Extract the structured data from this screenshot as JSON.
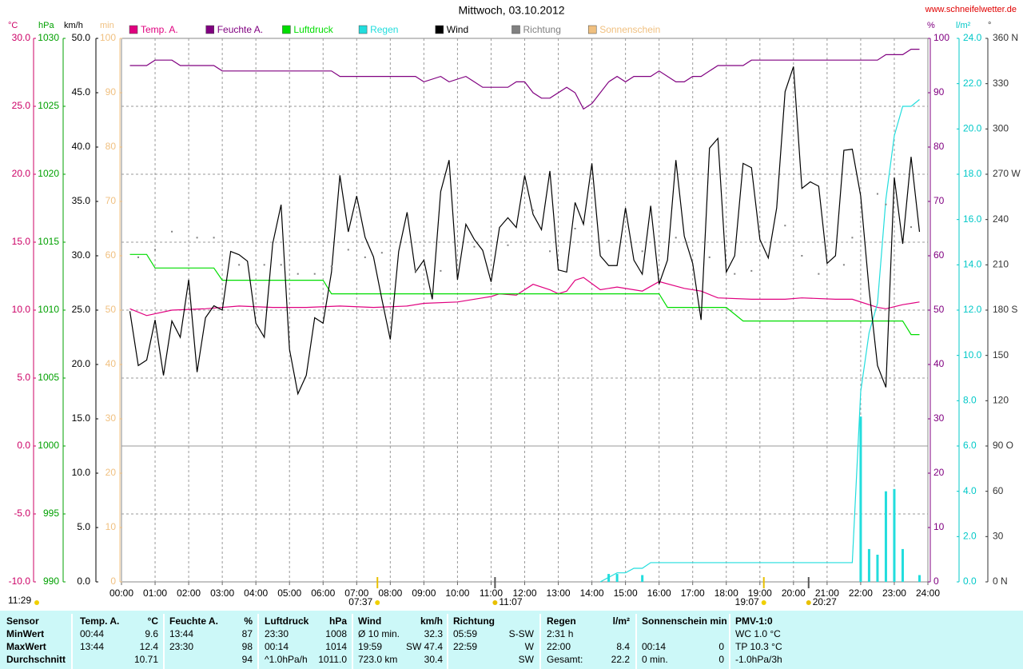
{
  "chart_data": {
    "type": "line",
    "title": "Mittwoch, 03.10.2012",
    "source": "www.schneifelwetter.de",
    "xlim": [
      0,
      24
    ],
    "xticks": [
      {
        "value": 0,
        "label": "00:00"
      },
      {
        "value": 1,
        "label": "01:00"
      },
      {
        "value": 2,
        "label": "02:00"
      },
      {
        "value": 3,
        "label": "03:00"
      },
      {
        "value": 4,
        "label": "04:00"
      },
      {
        "value": 5,
        "label": "05:00"
      },
      {
        "value": 6,
        "label": "06:00"
      },
      {
        "value": 7,
        "label": "07:00"
      },
      {
        "value": 8,
        "label": "08:00"
      },
      {
        "value": 9,
        "label": "09:00"
      },
      {
        "value": 10,
        "label": "10:00"
      },
      {
        "value": 11,
        "label": "11:00"
      },
      {
        "value": 12,
        "label": "12:00"
      },
      {
        "value": 13,
        "label": "13:00"
      },
      {
        "value": 14,
        "label": "14:00"
      },
      {
        "value": 15,
        "label": "15:00"
      },
      {
        "value": 16,
        "label": "16:00"
      },
      {
        "value": 17,
        "label": "17:00"
      },
      {
        "value": 18,
        "label": "18:00"
      },
      {
        "value": 19,
        "label": "19:00"
      },
      {
        "value": 20,
        "label": "20:00"
      },
      {
        "value": 21,
        "label": "21:00"
      },
      {
        "value": 22,
        "label": "22:00"
      },
      {
        "value": 23,
        "label": "23:00"
      },
      {
        "value": 24,
        "label": "24:00"
      }
    ],
    "grid": true,
    "zero_line": true,
    "axes": {
      "temp": {
        "unit": "°C",
        "color": "#cc0066",
        "lim": [
          -10,
          30
        ],
        "ticks": [
          {
            "value": -10,
            "label": "-10.0"
          },
          {
            "value": -5,
            "label": "-5.0"
          },
          {
            "value": 0,
            "label": "0.0"
          },
          {
            "value": 5,
            "label": "5.0"
          },
          {
            "value": 10,
            "label": "10.0"
          },
          {
            "value": 15,
            "label": "15.0"
          },
          {
            "value": 20,
            "label": "20.0"
          },
          {
            "value": 25,
            "label": "25.0"
          },
          {
            "value": 30,
            "label": "30.0"
          }
        ]
      },
      "pressure": {
        "unit": "hPa",
        "color": "#00a000",
        "lim": [
          990,
          1030
        ],
        "ticks": [
          990,
          995,
          1000,
          1005,
          1010,
          1015,
          1020,
          1025,
          1030
        ]
      },
      "wind": {
        "unit": "km/h",
        "color": "#000000",
        "lim": [
          0,
          50
        ],
        "ticks": [
          {
            "value": 0,
            "label": "0.0"
          },
          {
            "value": 5,
            "label": "5.0"
          },
          {
            "value": 10,
            "label": "10.0"
          },
          {
            "value": 15,
            "label": "15.0"
          },
          {
            "value": 20,
            "label": "20.0"
          },
          {
            "value": 25,
            "label": "25.0"
          },
          {
            "value": 30,
            "label": "30.0"
          },
          {
            "value": 35,
            "label": "35.0"
          },
          {
            "value": 40,
            "label": "40.0"
          },
          {
            "value": 45,
            "label": "45.0"
          },
          {
            "value": 50,
            "label": "50.0"
          }
        ]
      },
      "sun": {
        "unit": "min",
        "color": "#f0c080",
        "lim": [
          0,
          100
        ],
        "ticks": [
          0,
          10,
          20,
          30,
          40,
          50,
          60,
          70,
          80,
          90,
          100
        ]
      },
      "humidity": {
        "unit": "%",
        "color": "#800080",
        "lim": [
          0,
          100
        ],
        "ticks": [
          0,
          10,
          20,
          30,
          40,
          50,
          60,
          70,
          80,
          90,
          100
        ]
      },
      "rain": {
        "unit": "l/m²",
        "color": "#00c8c8",
        "lim": [
          0,
          24
        ],
        "ticks": [
          {
            "value": 0,
            "label": "0.0"
          },
          {
            "value": 2,
            "label": "2.0"
          },
          {
            "value": 4,
            "label": "4.0"
          },
          {
            "value": 6,
            "label": "6.0"
          },
          {
            "value": 8,
            "label": "8.0"
          },
          {
            "value": 10,
            "label": "10.0"
          },
          {
            "value": 12,
            "label": "12.0"
          },
          {
            "value": 14,
            "label": "14.0"
          },
          {
            "value": 16,
            "label": "16.0"
          },
          {
            "value": 18,
            "label": "18.0"
          },
          {
            "value": 20,
            "label": "20.0"
          },
          {
            "value": 22,
            "label": "22.0"
          },
          {
            "value": 24,
            "label": "24.0"
          }
        ]
      },
      "direction": {
        "unit": "°",
        "color": "#333333",
        "lim": [
          0,
          360
        ],
        "ticks": [
          {
            "value": 0,
            "label": "0 N"
          },
          30,
          60,
          {
            "value": 90,
            "label": "90 O"
          },
          120,
          150,
          {
            "value": 180,
            "label": "180 S"
          },
          210,
          240,
          {
            "value": 270,
            "label": "270 W"
          },
          300,
          330,
          {
            "value": 360,
            "label": "360 N"
          }
        ]
      }
    },
    "series": [
      {
        "name": "Temp. A.",
        "color": "#e0007f",
        "axis": "temp",
        "type": "line",
        "x": [
          0.25,
          0.75,
          1.5,
          2.5,
          3.5,
          4.5,
          5.5,
          6.5,
          7.5,
          8.5,
          9,
          10,
          10.75,
          11,
          11.25,
          11.75,
          12.25,
          12.75,
          13,
          13.25,
          13.5,
          13.75,
          14.25,
          14.75,
          15.5,
          16,
          16.75,
          17.25,
          17.75,
          18.75,
          19.75,
          20.25,
          21.25,
          21.75,
          22.5,
          22.75,
          23.25,
          23.75
        ],
        "values": [
          10.1,
          9.6,
          10,
          10.1,
          10.3,
          10.2,
          10.2,
          10.3,
          10.2,
          10.3,
          10.5,
          10.6,
          10.9,
          11,
          11.2,
          11.1,
          11.9,
          11.5,
          11.2,
          11.4,
          12.2,
          12.4,
          11.5,
          11.7,
          11.4,
          12.1,
          11.6,
          11.4,
          10.9,
          10.8,
          10.8,
          10.9,
          10.8,
          10.8,
          10.2,
          10.1,
          10.4,
          10.6
        ]
      },
      {
        "name": "Feuchte A.",
        "color": "#800080",
        "axis": "humidity",
        "type": "line",
        "x": [
          0.25,
          0.75,
          1,
          1.5,
          1.75,
          2.75,
          3,
          6.25,
          6.5,
          8.75,
          9,
          9.5,
          9.75,
          10.25,
          10.5,
          10.75,
          11.5,
          11.75,
          12,
          12.25,
          12.5,
          12.75,
          13.25,
          13.5,
          13.75,
          14,
          14.5,
          14.75,
          15,
          15.25,
          15.75,
          16,
          16.5,
          16.75,
          17,
          17.25,
          17.75,
          18.5,
          18.75,
          22.5,
          22.75,
          23.25,
          23.5,
          23.75
        ],
        "values": [
          95,
          95,
          96,
          96,
          95,
          95,
          94,
          94,
          93,
          93,
          92,
          93,
          92,
          93,
          92,
          91,
          91,
          92,
          92,
          90,
          89,
          89,
          91,
          90,
          87,
          88,
          92,
          93,
          92,
          93,
          93,
          94,
          92,
          92,
          93,
          93,
          95,
          95,
          96,
          96,
          97,
          97,
          98,
          98
        ]
      },
      {
        "name": "Luftdruck",
        "color": "#00dd00",
        "axis": "pressure",
        "type": "line",
        "x": [
          0.25,
          0.75,
          1,
          2.75,
          3,
          6,
          6.25,
          16,
          16.25,
          18,
          18.5,
          23.25,
          23.5,
          23.75
        ],
        "values": [
          1014.1,
          1014.1,
          1013.1,
          1013.1,
          1012.2,
          1012.2,
          1011.2,
          1011.2,
          1010.2,
          1010.2,
          1009.2,
          1009.2,
          1008.2,
          1008.2
        ]
      },
      {
        "name": "Regen",
        "color": "#22dddd",
        "axis": "rain",
        "type": "line",
        "x": [
          14.25,
          14.5,
          14.75,
          15,
          15.25,
          15.5,
          15.75,
          16,
          21.75,
          22,
          22.25,
          22.5,
          22.75,
          23,
          23.25,
          23.5,
          23.75
        ],
        "values": [
          0,
          0.2,
          0.4,
          0.4,
          0.6,
          0.6,
          0.85,
          0.85,
          0.85,
          8.4,
          11,
          12.3,
          16.9,
          19.7,
          21,
          21,
          21.3
        ],
        "bars": {
          "x": [
            14.5,
            14.75,
            15.5,
            22,
            22.25,
            22.5,
            22.75,
            23,
            23.25,
            23.75
          ],
          "values": [
            0.35,
            0.35,
            0.3,
            7.3,
            1.45,
            1.2,
            4,
            4.1,
            1.45,
            0.3
          ]
        }
      },
      {
        "name": "Wind",
        "color": "#000000",
        "axis": "wind",
        "type": "line",
        "x": [
          0.25,
          0.5,
          0.75,
          1,
          1.25,
          1.5,
          1.75,
          2,
          2.25,
          2.5,
          2.75,
          3,
          3.25,
          3.5,
          3.75,
          4,
          4.25,
          4.5,
          4.75,
          5,
          5.25,
          5.5,
          5.75,
          6,
          6.25,
          6.5,
          6.75,
          7,
          7.25,
          7.5,
          7.75,
          8,
          8.25,
          8.5,
          8.75,
          9,
          9.25,
          9.5,
          9.75,
          10,
          10.25,
          10.5,
          10.75,
          11,
          11.25,
          11.5,
          11.75,
          12,
          12.25,
          12.5,
          12.75,
          13,
          13.25,
          13.5,
          13.75,
          14,
          14.25,
          14.5,
          14.75,
          15,
          15.25,
          15.5,
          15.75,
          16,
          16.25,
          16.5,
          16.75,
          17,
          17.25,
          17.5,
          17.75,
          18,
          18.25,
          18.5,
          18.75,
          19,
          19.25,
          19.5,
          19.75,
          20,
          20.25,
          20.5,
          20.75,
          21,
          21.25,
          21.5,
          21.75,
          22,
          22.25,
          22.5,
          22.75,
          23,
          23.25,
          23.5,
          23.75
        ],
        "values": [
          24.9,
          19.9,
          20.4,
          24.1,
          19.0,
          24.0,
          22.5,
          27.8,
          19.3,
          24.3,
          25.4,
          25.0,
          30.4,
          30.1,
          29.5,
          23.8,
          22.5,
          31.1,
          34.7,
          21.4,
          17.3,
          19.0,
          24.3,
          23.8,
          28.5,
          37.4,
          32.2,
          35.5,
          31.7,
          29.9,
          26.0,
          22.3,
          30.4,
          34.0,
          28.5,
          29.6,
          26.0,
          35.9,
          38.8,
          27.8,
          32.9,
          31.5,
          30.5,
          27.6,
          32.6,
          33.5,
          32.6,
          37.4,
          33.8,
          32.4,
          37.8,
          28.7,
          28.5,
          34.9,
          32.9,
          38.5,
          30.0,
          29.1,
          29.1,
          34.4,
          29.6,
          28.3,
          34.6,
          27.4,
          29.6,
          38.8,
          31.8,
          29.3,
          24.1,
          39.9,
          40.8,
          28.5,
          30.0,
          38.5,
          38.1,
          31.5,
          29.8,
          34.4,
          45.1,
          47.4,
          36.2,
          36.8,
          36.4,
          29.3,
          30.0,
          39.7,
          39.8,
          35.5,
          26.9,
          19.9,
          17.9,
          37.2,
          31.1,
          39.1,
          32.2
        ]
      },
      {
        "name": "Richtung",
        "color": "#808080",
        "axis": "direction",
        "type": "scatter",
        "x": [
          0.5,
          1,
          1.5,
          2.25,
          2.75,
          3.5,
          4.25,
          4.75,
          5.25,
          5.75,
          6.25,
          6.75,
          7.25,
          7.75,
          8.75,
          9.5,
          10.5,
          11.5,
          12.25,
          12.75,
          13.5,
          14.5,
          15.5,
          16.5,
          17.5,
          18.25,
          18.75,
          19.75,
          20.25,
          20.75,
          21.5,
          21.75,
          22.5,
          22.75,
          23.5
        ],
        "values": [
          215,
          220,
          232,
          228,
          228,
          210,
          210,
          210,
          204,
          204,
          209,
          220,
          215,
          218,
          206,
          206,
          222,
          223,
          246,
          219,
          234,
          226,
          219,
          228,
          215,
          204,
          206,
          236,
          216,
          204,
          210,
          228,
          257,
          250,
          235
        ]
      },
      {
        "name": "Sonnenschein",
        "color": "#f0c080",
        "axis": "sun",
        "type": "line",
        "x": [],
        "values": []
      }
    ],
    "sun_duration": "11:29",
    "events": [
      {
        "label": "07:37",
        "value": 7.617,
        "icon": "sun"
      },
      {
        "label": "11:07",
        "value": 11.117,
        "icon": "moon"
      },
      {
        "label": "19:07",
        "value": 19.117,
        "icon": "sun"
      },
      {
        "label": "20:27",
        "value": 20.45,
        "icon": "moon"
      }
    ]
  },
  "table": {
    "header": [
      "Sensor",
      "Temp. A.",
      "°C",
      "Feuchte A.",
      "%",
      "Luftdruck",
      "hPa",
      "Wind",
      "km/h",
      "Richtung",
      null,
      "Regen",
      "l/m²",
      "Sonnenschein min",
      null,
      "PMV-1:0"
    ],
    "rows": [
      [
        "MinWert",
        "00:44",
        "9.6",
        "13:44",
        "87",
        "23:30",
        "1008",
        "Ø 10 min.",
        "32.3",
        "05:59",
        "S-SW",
        "2:31 h",
        null,
        null,
        null,
        "WC 1.0 °C"
      ],
      [
        "MaxWert",
        "13:44",
        "12.4",
        "23:30",
        "98",
        "00:14",
        "1014",
        "19:59",
        "SW 47.4",
        "22:59",
        "W",
        "22:00",
        "8.4",
        "00:14",
        "0",
        "TP 10.3 °C"
      ],
      [
        "Durchschnitt",
        null,
        "10.71",
        null,
        "94",
        "^1.0hPa/h",
        "1011.0",
        "723.0 km",
        "30.4",
        null,
        "SW",
        "Gesamt:",
        "22.2",
        "0 min.",
        "0",
        "-1.0hPa/3h"
      ]
    ]
  }
}
